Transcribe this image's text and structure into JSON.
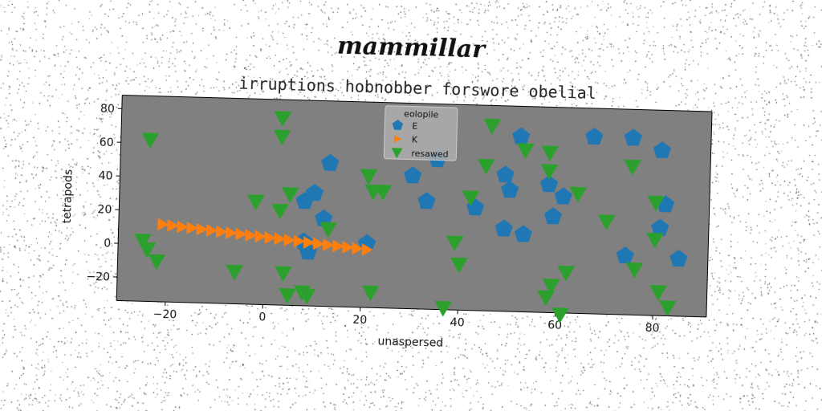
{
  "figure_title": "mammillar",
  "colors": {
    "axes_background": "#808080",
    "E": "#1f77b4",
    "K": "#ff7f0e",
    "resawed": "#2ca02c"
  },
  "chart_data": {
    "type": "scatter",
    "title": "irruptions hobnobber forswore obelial",
    "xlabel": "unaspersed",
    "ylabel": "tetrapods",
    "xlim": [
      -30,
      91
    ],
    "ylim": [
      -34,
      88
    ],
    "xticks": [
      -20,
      0,
      20,
      40,
      60,
      80
    ],
    "yticks": [
      -20,
      0,
      20,
      40,
      60,
      80
    ],
    "grid": false,
    "legend": {
      "title": "eolopile",
      "placement": "top-center"
    },
    "series": [
      {
        "name": "E",
        "marker": "pentagon",
        "color": "#1f77b4",
        "x": [
          13,
          10,
          8,
          12,
          8,
          9,
          21,
          30,
          33,
          35,
          43,
          49,
          50,
          49,
          52,
          53,
          58,
          59,
          61,
          67,
          75,
          74,
          81,
          82,
          81,
          85
        ],
        "y": [
          51,
          33,
          28,
          18,
          4,
          -2,
          4,
          45,
          30,
          55,
          27,
          47,
          38,
          15,
          70,
          12,
          42,
          23,
          35,
          71,
          71,
          1,
          64,
          32,
          18,
          0
        ]
      },
      {
        "name": "K",
        "marker": "triangle-right",
        "color": "#ff7f0e",
        "x": [
          -21,
          -19,
          -17,
          -15,
          -13,
          -11,
          -9,
          -7,
          -5,
          -3,
          -1,
          1,
          3,
          5,
          7,
          9,
          11,
          13,
          15,
          17,
          19,
          21
        ],
        "y": [
          12,
          11.4,
          10.8,
          10.3,
          9.7,
          9.2,
          8.6,
          8.1,
          7.5,
          6.9,
          6.4,
          5.8,
          5.3,
          4.7,
          4.2,
          3.6,
          3.1,
          2.5,
          2.0,
          1.4,
          0.9,
          0.3
        ]
      },
      {
        "name": "resawed",
        "marker": "triangle-down",
        "color": "#2ca02c",
        "x": [
          -24,
          -25,
          -24,
          -22,
          -6,
          -2,
          3,
          3,
          3,
          5,
          4,
          5,
          8,
          9,
          13,
          21,
          22,
          24,
          22,
          37,
          39,
          40,
          42,
          45,
          46,
          53,
          58,
          58,
          58,
          59,
          61,
          62,
          64,
          70,
          75,
          76,
          80,
          80,
          81,
          83
        ],
        "y": [
          62,
          2,
          -3,
          -10,
          -15,
          27,
          77,
          66,
          22,
          32,
          -15,
          -28,
          -26,
          -28,
          12,
          44,
          35,
          35,
          -25,
          -33,
          6,
          -7,
          33,
          52,
          76,
          62,
          -25,
          61,
          50,
          -18,
          -35,
          -10,
          37,
          21,
          54,
          -7,
          11,
          33,
          -20,
          -29
        ]
      }
    ]
  }
}
